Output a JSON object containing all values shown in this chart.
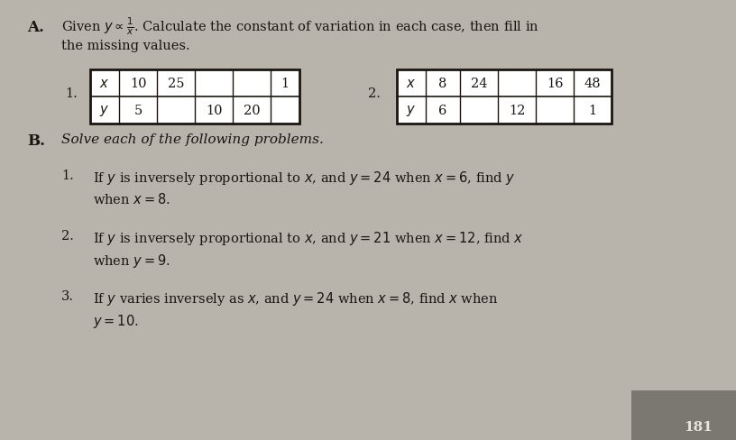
{
  "bg_color": "#b8b4ac",
  "text_color": "#1a1510",
  "table_border_color": "#1a1510",
  "table_fill": "#e8e4dc",
  "section_a_label": "A.",
  "header_line1": "Given $y \\propto \\frac{1}{x}$. Calculate the constant of variation in each case, then fill in",
  "header_line2": "the missing values.",
  "table1_label": "1.",
  "table1_row1": [
    "x",
    "10",
    "25",
    "",
    "",
    "1"
  ],
  "table1_row2": [
    "y",
    "5",
    "",
    "10",
    "20",
    ""
  ],
  "table2_label": "2.",
  "table2_row1": [
    "x",
    "8",
    "24",
    "",
    "16",
    "48"
  ],
  "table2_row2": [
    "y",
    "6",
    "",
    "12",
    "",
    "1"
  ],
  "section_b_label": "B.",
  "section_b_text": "Solve each of the following problems.",
  "prob1_line1": "If $y$ is inversely proportional to $x$, and $y=24$ when $x=6$, find $y$",
  "prob1_line2": "when $x=8$.",
  "prob2_line1": "If $y$ is inversely proportional to $x$, and $y=21$ when $x=12$, find $x$",
  "prob2_line2": "when $y=9$.",
  "prob3_line1": "If $y$ varies inversely as $x$, and $y=24$ when $x=8$, find $x$ when",
  "prob3_line2": "$y=10$.",
  "page_number": "181",
  "tab_color": "#7a7870"
}
